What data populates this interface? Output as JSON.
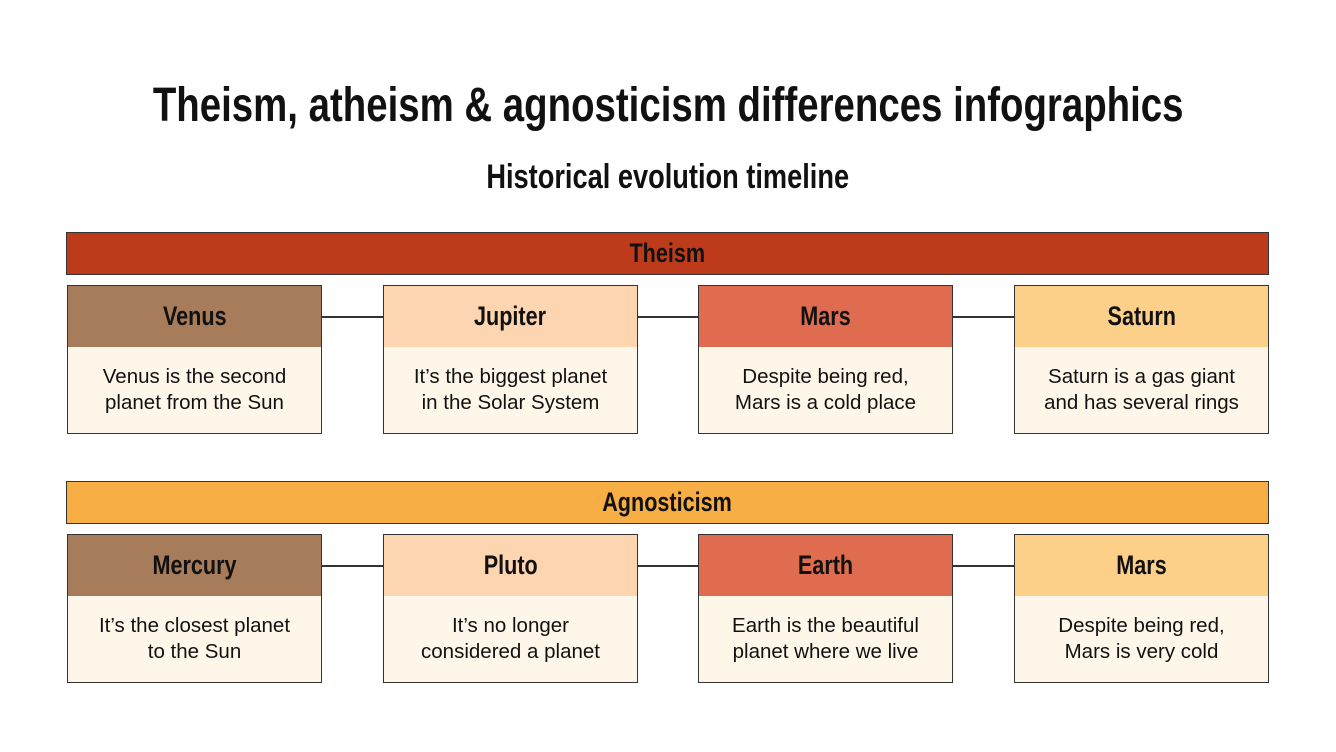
{
  "title": "Theism, atheism & agnosticism differences infographics",
  "subtitle": "Historical evolution timeline",
  "sections": [
    {
      "label": "Theism",
      "color": "#bd3b1b",
      "cards": [
        {
          "title": "Venus",
          "color": "#a67c5b",
          "lines": [
            "Venus is the second",
            "planet from the Sun"
          ]
        },
        {
          "title": "Jupiter",
          "color": "#fdd5b1",
          "lines": [
            "It’s the biggest planet",
            "in the Solar System"
          ]
        },
        {
          "title": "Mars",
          "color": "#e06c50",
          "lines": [
            "Despite being red,",
            "Mars is a cold place"
          ]
        },
        {
          "title": "Saturn",
          "color": "#fdd08a",
          "lines": [
            "Saturn is a gas giant",
            "and has several rings"
          ]
        }
      ]
    },
    {
      "label": "Agnosticism",
      "color": "#f6ae45",
      "cards": [
        {
          "title": "Mercury",
          "color": "#a67c5b",
          "lines": [
            "It’s the closest planet",
            "to the Sun"
          ]
        },
        {
          "title": "Pluto",
          "color": "#fdd5b1",
          "lines": [
            "It’s no longer",
            "considered a planet"
          ]
        },
        {
          "title": "Earth",
          "color": "#e06c50",
          "lines": [
            "Earth is the beautiful",
            "planet where we live"
          ]
        },
        {
          "title": "Mars",
          "color": "#fdd08a",
          "lines": [
            "Despite being red,",
            "Mars is very cold"
          ]
        }
      ]
    }
  ]
}
